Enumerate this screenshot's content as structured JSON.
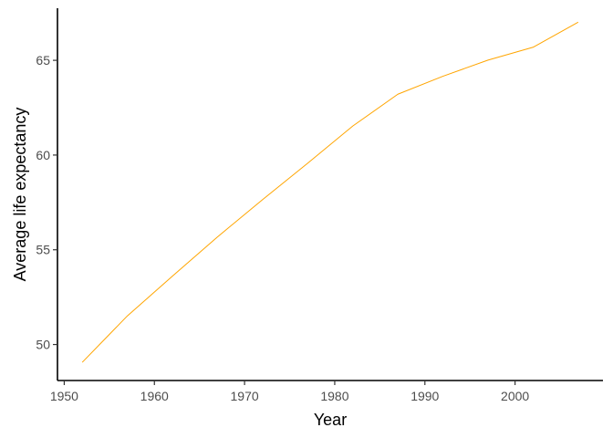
{
  "chart_data": {
    "type": "line",
    "title": "",
    "xlabel": "Year",
    "ylabel": "Average life expectancy",
    "xlim": [
      1949.25,
      2009.75
    ],
    "ylim": [
      48.1,
      67.75
    ],
    "x_ticks": [
      1950,
      1960,
      1970,
      1980,
      1990,
      2000
    ],
    "y_ticks": [
      50,
      55,
      60,
      65
    ],
    "grid": false,
    "legend": "none",
    "series": [
      {
        "color": "#FFA500",
        "x": [
          1952,
          1957,
          1962,
          1967,
          1972,
          1977,
          1982,
          1987,
          1992,
          1997,
          2002,
          2007
        ],
        "y": [
          49.06,
          51.51,
          53.61,
          55.68,
          57.65,
          59.57,
          61.53,
          63.21,
          64.16,
          65.01,
          65.69,
          67.01
        ]
      }
    ]
  }
}
